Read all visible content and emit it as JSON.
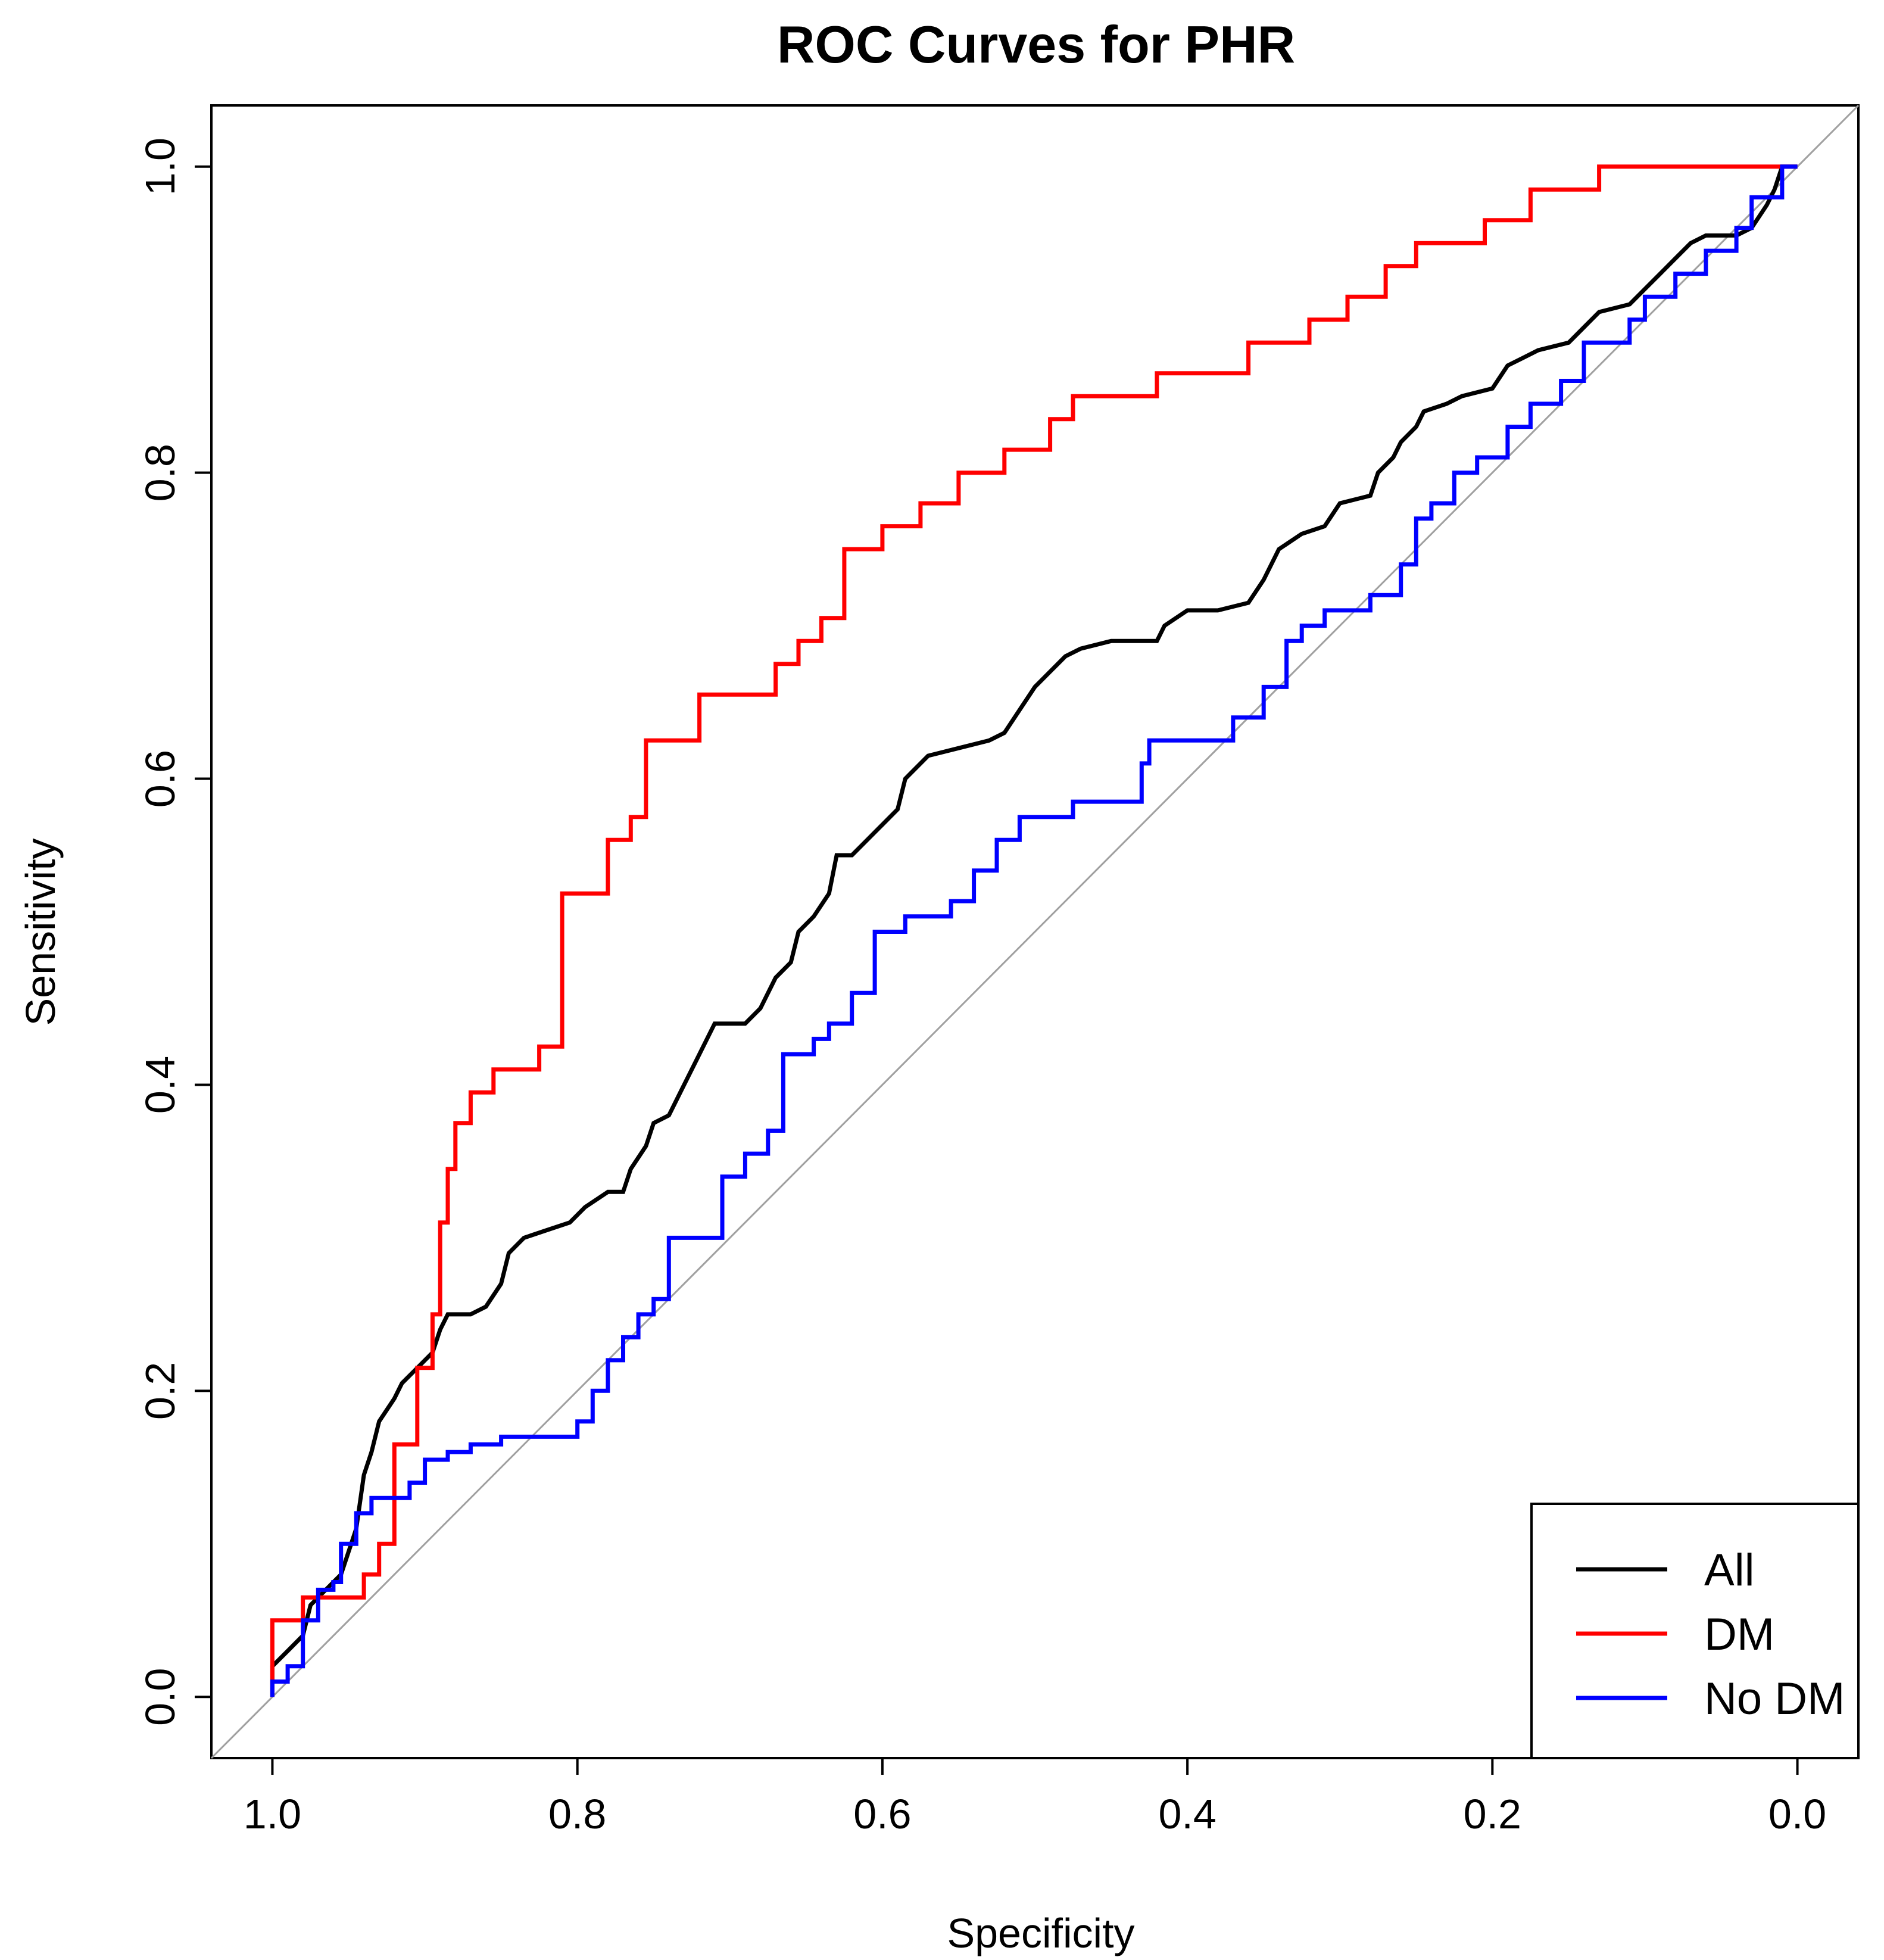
{
  "chart_data": {
    "type": "line",
    "title": "ROC Curves for PHR",
    "xlabel": "Specificity",
    "ylabel": "Sensitivity",
    "x_axis": {
      "reversed": true,
      "xlim": [
        1.04,
        -0.04
      ],
      "ticks": [
        1.0,
        0.8,
        0.6,
        0.4,
        0.2,
        0.0
      ],
      "tick_labels": [
        "1.0",
        "0.8",
        "0.6",
        "0.4",
        "0.2",
        "0.0"
      ]
    },
    "y_axis": {
      "ylim": [
        -0.04,
        1.04
      ],
      "ticks": [
        0.0,
        0.2,
        0.4,
        0.6,
        0.8,
        1.0
      ],
      "tick_labels": [
        "0.0",
        "0.2",
        "0.4",
        "0.6",
        "0.8",
        "1.0"
      ]
    },
    "grid": false,
    "reference_line": {
      "from": [
        1.0,
        0.0
      ],
      "to": [
        0.0,
        1.0
      ],
      "color": "#a0a0a0"
    },
    "legend": {
      "placement": "bottom-right",
      "entries": [
        "All",
        "DM",
        "No DM"
      ]
    },
    "series": [
      {
        "name": "All",
        "color": "#000000",
        "points": [
          [
            1.0,
            0.0
          ],
          [
            1.0,
            0.02
          ],
          [
            0.99,
            0.03
          ],
          [
            0.98,
            0.04
          ],
          [
            0.975,
            0.06
          ],
          [
            0.97,
            0.065
          ],
          [
            0.955,
            0.08
          ],
          [
            0.945,
            0.11
          ],
          [
            0.94,
            0.145
          ],
          [
            0.935,
            0.16
          ],
          [
            0.93,
            0.18
          ],
          [
            0.92,
            0.195
          ],
          [
            0.915,
            0.205
          ],
          [
            0.905,
            0.215
          ],
          [
            0.895,
            0.225
          ],
          [
            0.89,
            0.24
          ],
          [
            0.885,
            0.25
          ],
          [
            0.87,
            0.25
          ],
          [
            0.86,
            0.255
          ],
          [
            0.85,
            0.27
          ],
          [
            0.845,
            0.29
          ],
          [
            0.835,
            0.3
          ],
          [
            0.82,
            0.305
          ],
          [
            0.805,
            0.31
          ],
          [
            0.795,
            0.32
          ],
          [
            0.78,
            0.33
          ],
          [
            0.77,
            0.33
          ],
          [
            0.765,
            0.345
          ],
          [
            0.755,
            0.36
          ],
          [
            0.75,
            0.375
          ],
          [
            0.74,
            0.38
          ],
          [
            0.73,
            0.4
          ],
          [
            0.72,
            0.42
          ],
          [
            0.71,
            0.44
          ],
          [
            0.69,
            0.44
          ],
          [
            0.68,
            0.45
          ],
          [
            0.67,
            0.47
          ],
          [
            0.66,
            0.48
          ],
          [
            0.655,
            0.5
          ],
          [
            0.645,
            0.51
          ],
          [
            0.635,
            0.525
          ],
          [
            0.63,
            0.55
          ],
          [
            0.62,
            0.55
          ],
          [
            0.61,
            0.56
          ],
          [
            0.6,
            0.57
          ],
          [
            0.59,
            0.58
          ],
          [
            0.585,
            0.6
          ],
          [
            0.57,
            0.615
          ],
          [
            0.55,
            0.62
          ],
          [
            0.53,
            0.625
          ],
          [
            0.52,
            0.63
          ],
          [
            0.51,
            0.645
          ],
          [
            0.5,
            0.66
          ],
          [
            0.49,
            0.67
          ],
          [
            0.48,
            0.68
          ],
          [
            0.47,
            0.685
          ],
          [
            0.45,
            0.69
          ],
          [
            0.42,
            0.69
          ],
          [
            0.415,
            0.7
          ],
          [
            0.4,
            0.71
          ],
          [
            0.38,
            0.71
          ],
          [
            0.36,
            0.715
          ],
          [
            0.35,
            0.73
          ],
          [
            0.34,
            0.75
          ],
          [
            0.325,
            0.76
          ],
          [
            0.31,
            0.765
          ],
          [
            0.3,
            0.78
          ],
          [
            0.28,
            0.785
          ],
          [
            0.275,
            0.8
          ],
          [
            0.265,
            0.81
          ],
          [
            0.26,
            0.82
          ],
          [
            0.25,
            0.83
          ],
          [
            0.245,
            0.84
          ],
          [
            0.23,
            0.845
          ],
          [
            0.22,
            0.85
          ],
          [
            0.2,
            0.855
          ],
          [
            0.19,
            0.87
          ],
          [
            0.18,
            0.875
          ],
          [
            0.17,
            0.88
          ],
          [
            0.15,
            0.885
          ],
          [
            0.14,
            0.895
          ],
          [
            0.13,
            0.905
          ],
          [
            0.11,
            0.91
          ],
          [
            0.1,
            0.92
          ],
          [
            0.09,
            0.93
          ],
          [
            0.08,
            0.94
          ],
          [
            0.07,
            0.95
          ],
          [
            0.06,
            0.955
          ],
          [
            0.04,
            0.955
          ],
          [
            0.03,
            0.96
          ],
          [
            0.02,
            0.975
          ],
          [
            0.015,
            0.985
          ],
          [
            0.01,
            1.0
          ],
          [
            0.0,
            1.0
          ]
        ]
      },
      {
        "name": "DM",
        "color": "#ff0000",
        "points": [
          [
            1.0,
            0.0
          ],
          [
            1.0,
            0.05
          ],
          [
            0.98,
            0.05
          ],
          [
            0.98,
            0.065
          ],
          [
            0.94,
            0.065
          ],
          [
            0.94,
            0.08
          ],
          [
            0.93,
            0.08
          ],
          [
            0.93,
            0.1
          ],
          [
            0.92,
            0.1
          ],
          [
            0.92,
            0.165
          ],
          [
            0.905,
            0.165
          ],
          [
            0.905,
            0.215
          ],
          [
            0.895,
            0.215
          ],
          [
            0.895,
            0.25
          ],
          [
            0.89,
            0.25
          ],
          [
            0.89,
            0.31
          ],
          [
            0.885,
            0.31
          ],
          [
            0.885,
            0.345
          ],
          [
            0.88,
            0.345
          ],
          [
            0.88,
            0.375
          ],
          [
            0.87,
            0.375
          ],
          [
            0.87,
            0.395
          ],
          [
            0.855,
            0.395
          ],
          [
            0.855,
            0.41
          ],
          [
            0.825,
            0.41
          ],
          [
            0.825,
            0.425
          ],
          [
            0.81,
            0.425
          ],
          [
            0.81,
            0.525
          ],
          [
            0.78,
            0.525
          ],
          [
            0.78,
            0.56
          ],
          [
            0.765,
            0.56
          ],
          [
            0.765,
            0.575
          ],
          [
            0.755,
            0.575
          ],
          [
            0.755,
            0.625
          ],
          [
            0.72,
            0.625
          ],
          [
            0.72,
            0.655
          ],
          [
            0.67,
            0.655
          ],
          [
            0.67,
            0.675
          ],
          [
            0.655,
            0.675
          ],
          [
            0.655,
            0.69
          ],
          [
            0.64,
            0.69
          ],
          [
            0.64,
            0.705
          ],
          [
            0.625,
            0.705
          ],
          [
            0.625,
            0.75
          ],
          [
            0.6,
            0.75
          ],
          [
            0.6,
            0.765
          ],
          [
            0.575,
            0.765
          ],
          [
            0.575,
            0.78
          ],
          [
            0.55,
            0.78
          ],
          [
            0.55,
            0.8
          ],
          [
            0.52,
            0.8
          ],
          [
            0.52,
            0.815
          ],
          [
            0.49,
            0.815
          ],
          [
            0.49,
            0.835
          ],
          [
            0.475,
            0.835
          ],
          [
            0.475,
            0.85
          ],
          [
            0.42,
            0.85
          ],
          [
            0.42,
            0.865
          ],
          [
            0.36,
            0.865
          ],
          [
            0.36,
            0.885
          ],
          [
            0.32,
            0.885
          ],
          [
            0.32,
            0.9
          ],
          [
            0.295,
            0.9
          ],
          [
            0.295,
            0.915
          ],
          [
            0.27,
            0.915
          ],
          [
            0.27,
            0.935
          ],
          [
            0.25,
            0.935
          ],
          [
            0.25,
            0.95
          ],
          [
            0.205,
            0.95
          ],
          [
            0.205,
            0.965
          ],
          [
            0.175,
            0.965
          ],
          [
            0.175,
            0.985
          ],
          [
            0.13,
            0.985
          ],
          [
            0.13,
            1.0
          ],
          [
            0.0,
            1.0
          ]
        ]
      },
      {
        "name": "No DM",
        "color": "#0000ff",
        "points": [
          [
            1.0,
            0.0
          ],
          [
            1.0,
            0.01
          ],
          [
            0.99,
            0.01
          ],
          [
            0.99,
            0.02
          ],
          [
            0.98,
            0.02
          ],
          [
            0.98,
            0.05
          ],
          [
            0.97,
            0.05
          ],
          [
            0.97,
            0.07
          ],
          [
            0.96,
            0.07
          ],
          [
            0.96,
            0.075
          ],
          [
            0.955,
            0.075
          ],
          [
            0.955,
            0.1
          ],
          [
            0.945,
            0.1
          ],
          [
            0.945,
            0.12
          ],
          [
            0.935,
            0.12
          ],
          [
            0.935,
            0.13
          ],
          [
            0.91,
            0.13
          ],
          [
            0.91,
            0.14
          ],
          [
            0.9,
            0.14
          ],
          [
            0.9,
            0.155
          ],
          [
            0.885,
            0.155
          ],
          [
            0.885,
            0.16
          ],
          [
            0.87,
            0.16
          ],
          [
            0.87,
            0.165
          ],
          [
            0.85,
            0.165
          ],
          [
            0.85,
            0.17
          ],
          [
            0.8,
            0.17
          ],
          [
            0.8,
            0.18
          ],
          [
            0.79,
            0.18
          ],
          [
            0.79,
            0.2
          ],
          [
            0.78,
            0.2
          ],
          [
            0.78,
            0.22
          ],
          [
            0.77,
            0.22
          ],
          [
            0.77,
            0.235
          ],
          [
            0.76,
            0.235
          ],
          [
            0.76,
            0.25
          ],
          [
            0.75,
            0.25
          ],
          [
            0.75,
            0.26
          ],
          [
            0.74,
            0.26
          ],
          [
            0.74,
            0.3
          ],
          [
            0.705,
            0.3
          ],
          [
            0.705,
            0.34
          ],
          [
            0.69,
            0.34
          ],
          [
            0.69,
            0.355
          ],
          [
            0.675,
            0.355
          ],
          [
            0.675,
            0.37
          ],
          [
            0.665,
            0.37
          ],
          [
            0.665,
            0.42
          ],
          [
            0.645,
            0.42
          ],
          [
            0.645,
            0.43
          ],
          [
            0.635,
            0.43
          ],
          [
            0.635,
            0.44
          ],
          [
            0.62,
            0.44
          ],
          [
            0.62,
            0.46
          ],
          [
            0.605,
            0.46
          ],
          [
            0.605,
            0.5
          ],
          [
            0.585,
            0.5
          ],
          [
            0.585,
            0.51
          ],
          [
            0.555,
            0.51
          ],
          [
            0.555,
            0.52
          ],
          [
            0.54,
            0.52
          ],
          [
            0.54,
            0.54
          ],
          [
            0.525,
            0.54
          ],
          [
            0.525,
            0.56
          ],
          [
            0.51,
            0.56
          ],
          [
            0.51,
            0.575
          ],
          [
            0.475,
            0.575
          ],
          [
            0.475,
            0.585
          ],
          [
            0.43,
            0.585
          ],
          [
            0.43,
            0.61
          ],
          [
            0.425,
            0.61
          ],
          [
            0.425,
            0.625
          ],
          [
            0.37,
            0.625
          ],
          [
            0.37,
            0.64
          ],
          [
            0.35,
            0.64
          ],
          [
            0.35,
            0.66
          ],
          [
            0.335,
            0.66
          ],
          [
            0.335,
            0.69
          ],
          [
            0.325,
            0.69
          ],
          [
            0.325,
            0.7
          ],
          [
            0.31,
            0.7
          ],
          [
            0.31,
            0.71
          ],
          [
            0.28,
            0.71
          ],
          [
            0.28,
            0.72
          ],
          [
            0.26,
            0.72
          ],
          [
            0.26,
            0.74
          ],
          [
            0.25,
            0.74
          ],
          [
            0.25,
            0.77
          ],
          [
            0.24,
            0.77
          ],
          [
            0.24,
            0.78
          ],
          [
            0.225,
            0.78
          ],
          [
            0.225,
            0.8
          ],
          [
            0.21,
            0.8
          ],
          [
            0.21,
            0.81
          ],
          [
            0.19,
            0.81
          ],
          [
            0.19,
            0.83
          ],
          [
            0.175,
            0.83
          ],
          [
            0.175,
            0.845
          ],
          [
            0.155,
            0.845
          ],
          [
            0.155,
            0.86
          ],
          [
            0.14,
            0.86
          ],
          [
            0.14,
            0.885
          ],
          [
            0.11,
            0.885
          ],
          [
            0.11,
            0.9
          ],
          [
            0.1,
            0.9
          ],
          [
            0.1,
            0.915
          ],
          [
            0.08,
            0.915
          ],
          [
            0.08,
            0.93
          ],
          [
            0.06,
            0.93
          ],
          [
            0.06,
            0.945
          ],
          [
            0.04,
            0.945
          ],
          [
            0.04,
            0.96
          ],
          [
            0.03,
            0.96
          ],
          [
            0.03,
            0.98
          ],
          [
            0.01,
            0.98
          ],
          [
            0.01,
            1.0
          ],
          [
            0.0,
            1.0
          ]
        ]
      }
    ]
  }
}
